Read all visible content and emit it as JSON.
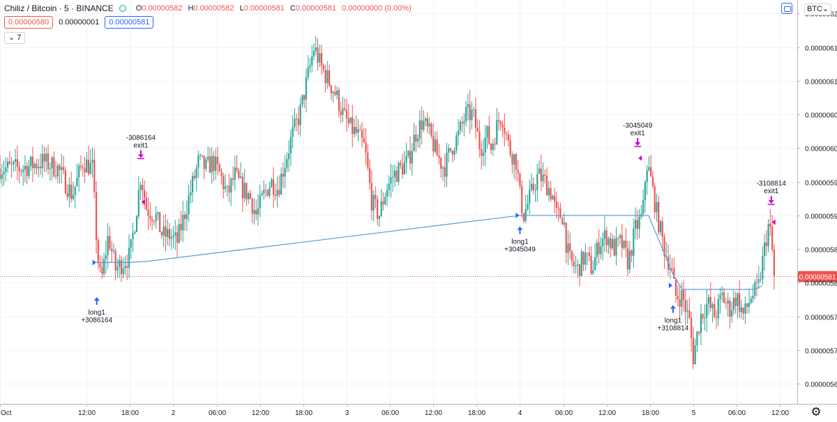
{
  "header": {
    "symbol_title": "Chiliz / Bitcoin · 5 · BINANCE",
    "ohlc": [
      {
        "key": "O",
        "value": "0.00000582"
      },
      {
        "key": "H",
        "value": "0.00000582"
      },
      {
        "key": "L",
        "value": "0.00000581"
      },
      {
        "key": "C",
        "value": "0.00000581"
      }
    ],
    "change": "0.00000000 (0.00%)",
    "sell_price": "0.00000580",
    "spread": "0.00000001",
    "buy_price": "0.00000581",
    "indicators_toggle": "7",
    "currency": "BTC",
    "currency_icon": "chevron-down-icon",
    "settings_icon": "gear-icon",
    "layout_icon": "window-icon"
  },
  "chart_data": {
    "type": "candlestick",
    "grid": true,
    "colors": {
      "up": "#26a69a",
      "down": "#ef5350",
      "trade_line": "#5b9bd5",
      "entry": "#2962ff",
      "exit": "#cc00cc",
      "last_price": "#ef5350"
    },
    "y_ticks": [
      "0.00000565",
      "0.00000570",
      "0.00000575",
      "0.00000580",
      "0.00000585",
      "0.00000590",
      "0.00000595",
      "0.00000600",
      "0.00000605",
      "0.00000610",
      "0.00000615",
      "0.00000620"
    ],
    "ylim": [
      5.62e-06,
      6.22e-06
    ],
    "x_ticks": [
      {
        "label": "Oct",
        "t": 0
      },
      {
        "label": "12:00",
        "t": 12
      },
      {
        "label": "18:00",
        "t": 18
      },
      {
        "label": "2",
        "t": 24
      },
      {
        "label": "06:00",
        "t": 30
      },
      {
        "label": "12:00",
        "t": 36
      },
      {
        "label": "18:00",
        "t": 42
      },
      {
        "label": "3",
        "t": 48
      },
      {
        "label": "06:00",
        "t": 54
      },
      {
        "label": "12:00",
        "t": 60
      },
      {
        "label": "18:00",
        "t": 66
      },
      {
        "label": "4",
        "t": 72
      },
      {
        "label": "06:00",
        "t": 78
      },
      {
        "label": "12:00",
        "t": 84
      },
      {
        "label": "18:00",
        "t": 90
      },
      {
        "label": "5",
        "t": 96
      },
      {
        "label": "06:00",
        "t": 102
      },
      {
        "label": "12:00",
        "t": 108
      }
    ],
    "xlim": [
      0,
      110.4
    ],
    "last_price": {
      "value": 5.81e-06,
      "label": "0.00000581"
    },
    "price_path": [
      [
        0,
        597
      ],
      [
        3,
        597
      ],
      [
        6,
        598
      ],
      [
        8,
        597
      ],
      [
        10,
        593
      ],
      [
        11.5,
        598
      ],
      [
        12.8,
        597
      ],
      [
        13.5,
        584
      ],
      [
        14,
        580
      ],
      [
        15,
        587
      ],
      [
        16,
        582
      ],
      [
        17,
        583
      ],
      [
        18,
        584
      ],
      [
        18.8,
        590
      ],
      [
        19.5,
        596
      ],
      [
        20.3,
        591
      ],
      [
        21.5,
        590
      ],
      [
        22.5,
        587
      ],
      [
        23.5,
        587
      ],
      [
        24.5,
        586
      ],
      [
        25.5,
        590
      ],
      [
        26.5,
        594
      ],
      [
        27.5,
        598
      ],
      [
        28.5,
        597
      ],
      [
        29.5,
        598
      ],
      [
        30.5,
        596
      ],
      [
        31.5,
        593
      ],
      [
        32.5,
        596
      ],
      [
        33.5,
        594
      ],
      [
        34.5,
        593
      ],
      [
        35.5,
        590
      ],
      [
        36.5,
        593
      ],
      [
        37.5,
        595
      ],
      [
        38.5,
        594
      ],
      [
        39.5,
        598
      ],
      [
        40.5,
        602
      ],
      [
        41.5,
        605
      ],
      [
        42.5,
        610
      ],
      [
        43.5,
        615
      ],
      [
        44.5,
        612
      ],
      [
        45.5,
        610
      ],
      [
        46.5,
        608
      ],
      [
        47.5,
        605
      ],
      [
        48.5,
        603
      ],
      [
        49.5,
        602
      ],
      [
        50.5,
        600
      ],
      [
        51,
        596
      ],
      [
        51.5,
        592
      ],
      [
        52.5,
        590
      ],
      [
        53.5,
        594
      ],
      [
        54.5,
        596
      ],
      [
        55.5,
        597
      ],
      [
        56.5,
        598
      ],
      [
        57.5,
        602
      ],
      [
        58.5,
        604
      ],
      [
        59.5,
        602
      ],
      [
        60.5,
        599
      ],
      [
        61.5,
        597
      ],
      [
        62.5,
        600
      ],
      [
        63.5,
        602
      ],
      [
        64.5,
        605
      ],
      [
        65.5,
        605
      ],
      [
        66.5,
        600
      ],
      [
        67.5,
        602
      ],
      [
        68,
        600
      ],
      [
        69,
        604
      ],
      [
        69.5,
        605
      ],
      [
        70.5,
        600
      ],
      [
        71.5,
        598
      ],
      [
        72,
        593
      ],
      [
        72.5,
        590
      ],
      [
        73.5,
        593
      ],
      [
        74.5,
        596
      ],
      [
        75.5,
        595
      ],
      [
        76.5,
        593
      ],
      [
        77,
        590
      ],
      [
        78,
        590
      ],
      [
        78.5,
        585
      ],
      [
        79,
        583
      ],
      [
        80,
        582
      ],
      [
        81,
        584
      ],
      [
        82,
        582
      ],
      [
        83,
        586
      ],
      [
        84,
        587
      ],
      [
        85,
        585
      ],
      [
        86,
        586
      ],
      [
        87,
        583
      ],
      [
        88,
        588
      ],
      [
        89,
        590
      ],
      [
        89.5,
        598
      ],
      [
        90,
        596
      ],
      [
        91,
        590
      ],
      [
        92,
        585
      ],
      [
        93,
        582
      ],
      [
        93.5,
        578
      ],
      [
        94.5,
        578
      ],
      [
        95.5,
        574
      ],
      [
        96,
        569
      ],
      [
        97,
        575
      ],
      [
        98,
        577
      ],
      [
        99,
        575
      ],
      [
        100,
        578
      ],
      [
        101,
        576
      ],
      [
        102,
        578
      ],
      [
        103,
        575
      ],
      [
        104,
        578
      ],
      [
        105,
        579
      ],
      [
        106,
        586
      ],
      [
        106.5,
        589
      ],
      [
        107,
        584
      ],
      [
        107.4,
        581
      ]
    ],
    "trade_line": [
      [
        13.2,
        583
      ],
      [
        17.8,
        583
      ],
      [
        20.6,
        583.2
      ],
      [
        72,
        590
      ],
      [
        89.8,
        590
      ],
      [
        93.3,
        581
      ],
      [
        94.5,
        579
      ],
      [
        104.5,
        579
      ],
      [
        105.5,
        579.5
      ]
    ],
    "entries": [
      {
        "t": 13.4,
        "price": 579,
        "label1": "long1",
        "label2": "+3086164",
        "marker_price": 583
      },
      {
        "t": 72,
        "price": 589.5,
        "label1": "long1",
        "label2": "+3045049",
        "marker_price": 590
      },
      {
        "t": 93.2,
        "price": 577.8,
        "label1": "long1",
        "label2": "+3108814",
        "marker_price": 579.6
      }
    ],
    "exits": [
      {
        "t": 19.5,
        "price": 597.4,
        "label1": "-3086164",
        "label2": "exit1",
        "marker_price": 592
      },
      {
        "t": 88.3,
        "price": 599.2,
        "label1": "-3045049",
        "label2": "exit1",
        "marker_price": 598.5
      },
      {
        "t": 106.8,
        "price": 590.6,
        "label1": "-3108814",
        "label2": "exit1",
        "marker_price": 589
      }
    ]
  }
}
